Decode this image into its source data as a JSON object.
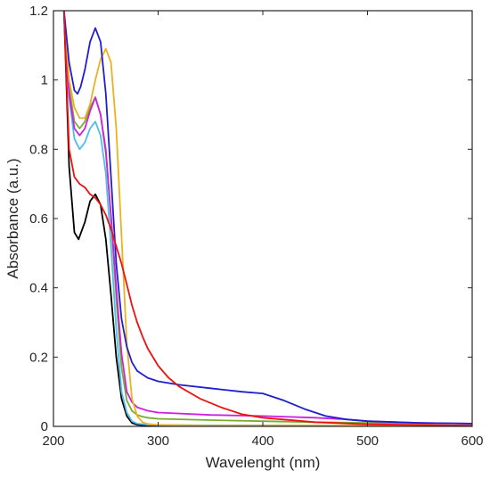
{
  "chart_data": {
    "type": "line",
    "title": "",
    "xlabel": "Wavelenght (nm)",
    "ylabel": "Absorbance (a.u.)",
    "xlim": [
      200,
      600
    ],
    "ylim": [
      0,
      1.2
    ],
    "xticks": [
      200,
      300,
      400,
      500,
      600
    ],
    "xtick_labels": [
      "200",
      "300",
      "400",
      "500",
      "600"
    ],
    "yticks": [
      0,
      0.2,
      0.4,
      0.6,
      0.8,
      1,
      1.2
    ],
    "ytick_labels": [
      "0",
      "0.2",
      "0.4",
      "0.6",
      "0.8",
      "1",
      "1.2"
    ],
    "grid": false,
    "legend": "none",
    "series": [
      {
        "color": "#000000",
        "x": [
          210,
          215,
          220,
          224,
          230,
          235,
          240,
          245,
          250,
          255,
          260,
          265,
          270,
          275,
          280,
          290,
          300,
          350,
          400,
          500,
          600
        ],
        "y": [
          1.2,
          0.75,
          0.56,
          0.54,
          0.59,
          0.65,
          0.67,
          0.64,
          0.54,
          0.38,
          0.2,
          0.08,
          0.03,
          0.01,
          0.005,
          0.002,
          0.001,
          0.001,
          0.001,
          0.001,
          0.001
        ]
      },
      {
        "color": "#4DBEEE",
        "x": [
          210,
          215,
          220,
          225,
          230,
          235,
          240,
          245,
          250,
          255,
          260,
          265,
          270,
          275,
          280,
          290,
          300,
          350,
          400,
          500,
          600
        ],
        "y": [
          1.2,
          0.95,
          0.83,
          0.8,
          0.82,
          0.86,
          0.88,
          0.84,
          0.73,
          0.52,
          0.28,
          0.1,
          0.04,
          0.015,
          0.008,
          0.005,
          0.004,
          0.003,
          0.003,
          0.002,
          0.002
        ]
      },
      {
        "color": "#77AC30",
        "x": [
          210,
          215,
          220,
          225,
          230,
          235,
          240,
          245,
          250,
          255,
          260,
          265,
          270,
          275,
          280,
          285,
          290,
          300,
          350,
          400,
          450,
          500,
          600
        ],
        "y": [
          1.2,
          0.98,
          0.88,
          0.86,
          0.88,
          0.92,
          0.95,
          0.9,
          0.8,
          0.6,
          0.37,
          0.17,
          0.075,
          0.045,
          0.033,
          0.028,
          0.025,
          0.022,
          0.018,
          0.015,
          0.012,
          0.01,
          0.008
        ]
      },
      {
        "color": "#CC22DD",
        "x": [
          210,
          215,
          220,
          225,
          230,
          235,
          240,
          245,
          250,
          255,
          260,
          265,
          270,
          275,
          280,
          290,
          300,
          350,
          400,
          450,
          480,
          500,
          550,
          600
        ],
        "y": [
          1.2,
          0.96,
          0.86,
          0.84,
          0.86,
          0.91,
          0.95,
          0.9,
          0.79,
          0.61,
          0.4,
          0.21,
          0.1,
          0.07,
          0.055,
          0.045,
          0.04,
          0.033,
          0.03,
          0.025,
          0.02,
          0.015,
          0.01,
          0.008
        ]
      },
      {
        "color": "#EDB120",
        "x": [
          210,
          215,
          220,
          225,
          230,
          235,
          240,
          245,
          250,
          255,
          260,
          265,
          270,
          275,
          280,
          285,
          290,
          300,
          350,
          400,
          500,
          600
        ],
        "y": [
          1.2,
          1.0,
          0.92,
          0.89,
          0.89,
          0.93,
          1.0,
          1.06,
          1.09,
          1.05,
          0.86,
          0.55,
          0.24,
          0.08,
          0.03,
          0.012,
          0.007,
          0.004,
          0.002,
          0.002,
          0.002,
          0.002
        ]
      },
      {
        "color": "#1F1FD0",
        "x": [
          210,
          215,
          220,
          223,
          226,
          230,
          235,
          240,
          245,
          250,
          255,
          260,
          265,
          270,
          275,
          280,
          285,
          290,
          300,
          320,
          350,
          380,
          400,
          420,
          440,
          460,
          480,
          500,
          550,
          600
        ],
        "y": [
          1.2,
          1.05,
          0.97,
          0.96,
          0.98,
          1.03,
          1.11,
          1.15,
          1.11,
          0.96,
          0.72,
          0.47,
          0.31,
          0.23,
          0.185,
          0.16,
          0.15,
          0.14,
          0.13,
          0.12,
          0.11,
          0.1,
          0.095,
          0.075,
          0.05,
          0.03,
          0.02,
          0.015,
          0.01,
          0.008
        ]
      },
      {
        "color": "#EE1111",
        "x": [
          210,
          215,
          220,
          225,
          230,
          235,
          240,
          245,
          250,
          255,
          260,
          265,
          270,
          275,
          280,
          285,
          290,
          300,
          310,
          320,
          340,
          360,
          380,
          400,
          450,
          500,
          600
        ],
        "y": [
          1.2,
          0.8,
          0.72,
          0.7,
          0.69,
          0.67,
          0.66,
          0.64,
          0.61,
          0.57,
          0.52,
          0.47,
          0.41,
          0.35,
          0.3,
          0.26,
          0.225,
          0.175,
          0.14,
          0.115,
          0.08,
          0.055,
          0.035,
          0.025,
          0.012,
          0.006,
          0.002
        ]
      }
    ]
  }
}
